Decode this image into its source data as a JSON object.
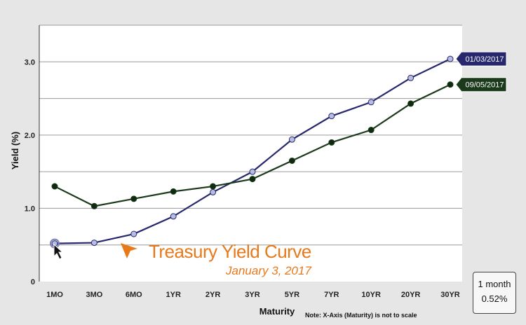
{
  "chart_data": {
    "type": "line",
    "categories": [
      "1MO",
      "3MO",
      "6MO",
      "1YR",
      "2YR",
      "3YR",
      "5YR",
      "7YR",
      "10YR",
      "20YR",
      "30YR"
    ],
    "series": [
      {
        "name": "01/03/2017",
        "color": "#27276e",
        "marker_color": "#b7bde0",
        "values": [
          0.52,
          0.53,
          0.65,
          0.89,
          1.22,
          1.5,
          1.94,
          2.26,
          2.45,
          2.78,
          3.04
        ]
      },
      {
        "name": "09/05/2017",
        "color": "#1b3a1b",
        "marker_color": "#0f2a0f",
        "values": [
          1.3,
          1.03,
          1.13,
          1.23,
          1.3,
          1.4,
          1.65,
          1.9,
          2.07,
          2.43,
          2.69
        ]
      }
    ],
    "ylim": [
      0,
      3.5
    ],
    "yticks": [
      "0",
      "1.0",
      "2.0",
      "3.0"
    ],
    "ytick_values": [
      0,
      1,
      2,
      3
    ],
    "grid_values": [
      0.5,
      1.0,
      1.5,
      2.0,
      2.5,
      3.0,
      3.5
    ],
    "xlabel": "Maturity",
    "ylabel": "Yield (%)",
    "note": "Note: X-Axis (Maturity) is not to scale",
    "grid": true,
    "legend": "right-end tags"
  },
  "overlay": {
    "title": "Treasury Yield Curve",
    "subtitle": "January 3, 2017",
    "arrow_icon": "orange-arrow-icon",
    "arrow_color": "#e8791b"
  },
  "readout": {
    "label": "1 month",
    "value": "0.52%"
  },
  "cursor": {
    "icon": "mouse-pointer-icon",
    "category": "1MO",
    "series": "01/03/2017"
  }
}
